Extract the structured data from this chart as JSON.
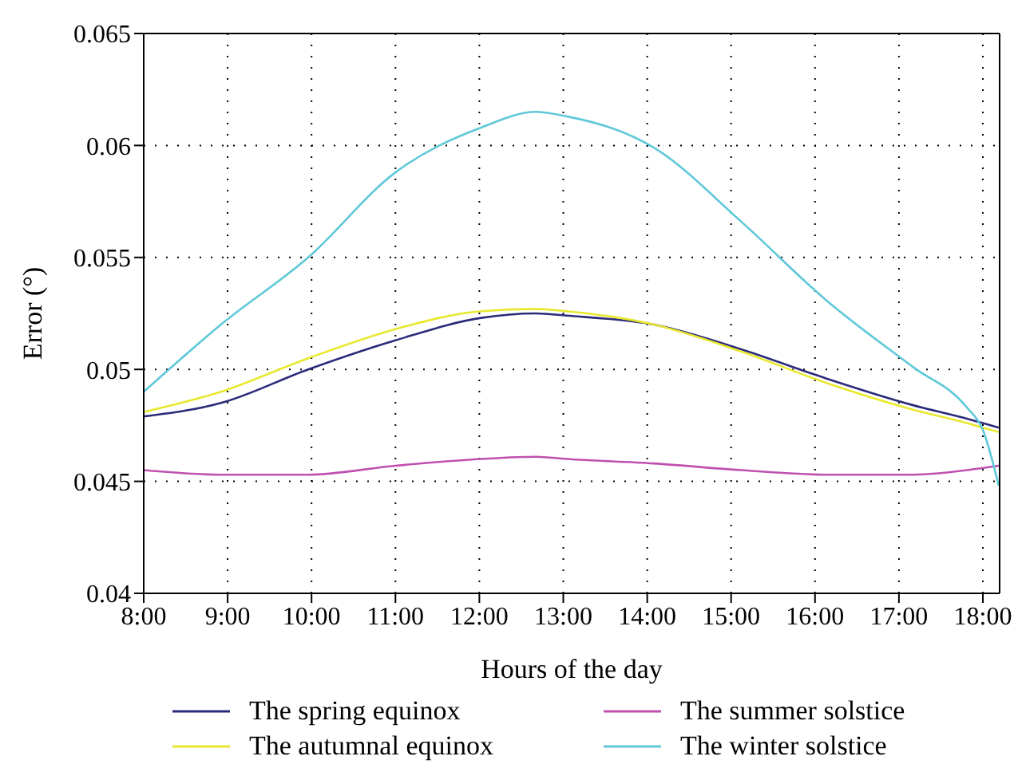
{
  "chart_data": {
    "type": "line",
    "xlabel": "Hours of the day",
    "ylabel": "Error (°)",
    "x": [
      8,
      8.92,
      9.96,
      11.0,
      12.02,
      12.67,
      13.04,
      14.08,
      15.12,
      16.13,
      17.17,
      17.81,
      18.0,
      18.19
    ],
    "series": [
      {
        "name": "The spring equinox",
        "color": "#2b2a7a",
        "values": [
          0.0479,
          0.0485,
          0.05,
          0.0513,
          0.0523,
          0.0525,
          0.0524,
          0.052,
          0.0509,
          0.0496,
          0.0484,
          0.0478,
          0.0476,
          0.0474
        ]
      },
      {
        "name": "The summer solstice",
        "color": "#c050b0",
        "values": [
          0.0455,
          0.0453,
          0.0453,
          0.0457,
          0.046,
          0.0461,
          0.046,
          0.0458,
          0.0455,
          0.0453,
          0.0453,
          0.0455,
          0.0456,
          0.0457
        ]
      },
      {
        "name": "The autumnal equinox",
        "color": "#e8e830",
        "values": [
          0.0481,
          0.049,
          0.0505,
          0.0518,
          0.0526,
          0.0527,
          0.0526,
          0.052,
          0.0508,
          0.0494,
          0.0482,
          0.0476,
          0.0474,
          0.0472
        ]
      },
      {
        "name": "The winter solstice",
        "color": "#5fc8d8",
        "values": [
          0.049,
          0.052,
          0.055,
          0.0588,
          0.0608,
          0.0615,
          0.0613,
          0.0599,
          0.0566,
          0.0531,
          0.0501,
          0.0483,
          0.0473,
          0.0448
        ]
      }
    ],
    "xlim": [
      8,
      18.2
    ],
    "xticks": [
      {
        "value": 8,
        "label": "8:00"
      },
      {
        "value": 9,
        "label": "9:00"
      },
      {
        "value": 10,
        "label": "10:00"
      },
      {
        "value": 11,
        "label": "11:00"
      },
      {
        "value": 12,
        "label": "12:00"
      },
      {
        "value": 13,
        "label": "13:00"
      },
      {
        "value": 14,
        "label": "14:00"
      },
      {
        "value": 15,
        "label": "15:00"
      },
      {
        "value": 16,
        "label": "16:00"
      },
      {
        "value": 17,
        "label": "17:00"
      },
      {
        "value": 18,
        "label": "18:00"
      }
    ],
    "ylim": [
      0.04,
      0.065
    ],
    "yticks": [
      0.04,
      0.045,
      0.05,
      0.055,
      0.06,
      0.065
    ],
    "grid": true,
    "legend": "bottom",
    "line_style": "solid",
    "marker": "none"
  }
}
